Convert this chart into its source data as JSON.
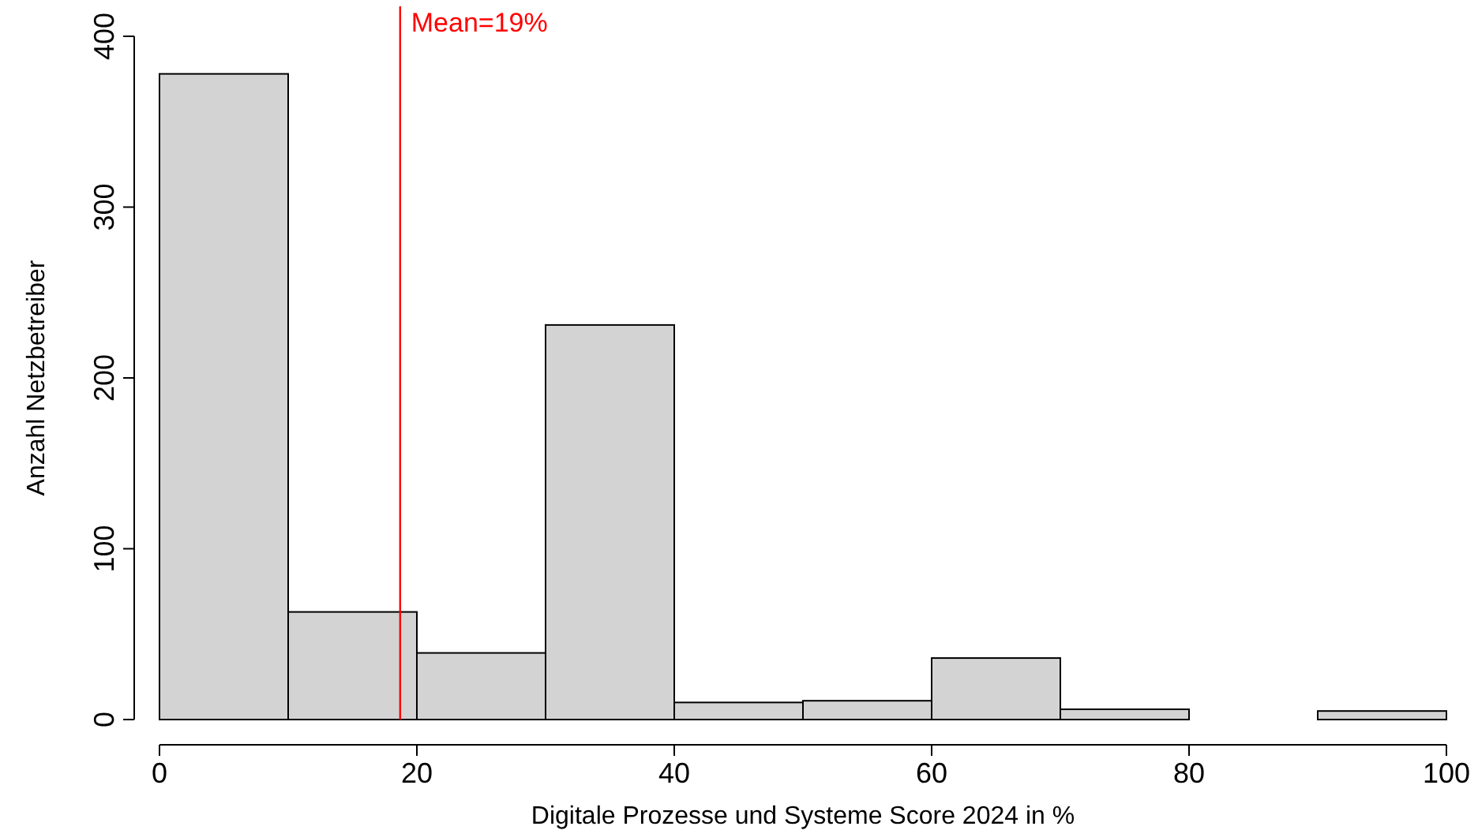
{
  "chart_data": {
    "type": "histogram",
    "xlabel": "Digitale Prozesse und Systeme Score 2024 in %",
    "ylabel": "Anzahl Netzbetreiber",
    "bins": [
      0,
      10,
      20,
      30,
      40,
      50,
      60,
      70,
      80,
      90,
      100
    ],
    "values": [
      378,
      63,
      39,
      231,
      10,
      11,
      36,
      6,
      0,
      5
    ],
    "color": "#d3d3d3",
    "xlim": [
      0,
      100
    ],
    "xticks": [
      0,
      20,
      40,
      60,
      80,
      100
    ],
    "ylim": [
      0,
      400
    ],
    "yticks": [
      0,
      100,
      200,
      300,
      400
    ],
    "ref_lines": [
      {
        "axis": "x",
        "value": 18.7,
        "label": "Mean=19%",
        "color": "#ff0000"
      }
    ],
    "grid": false
  }
}
